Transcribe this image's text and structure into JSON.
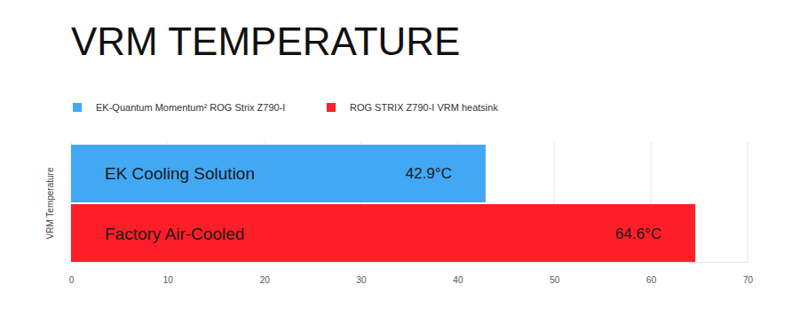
{
  "chart_data": {
    "type": "bar",
    "orientation": "horizontal",
    "title": "VRM TEMPERATURE",
    "ylabel": "VRM Temperature",
    "categories": [
      "EK Cooling Solution",
      "Factory Air-Cooled"
    ],
    "series": [
      {
        "name": "EK-Quantum Momentum² ROG Strix Z790-I",
        "color": "#42a8f4",
        "values": [
          42.9,
          null
        ],
        "value_labels": [
          "42.9°C",
          null
        ]
      },
      {
        "name": "ROG STRIX Z790-I VRM heatsink",
        "color": "#fe1e27",
        "values": [
          null,
          64.6
        ],
        "value_labels": [
          null,
          "64.6°C"
        ]
      }
    ],
    "xlim": [
      0,
      70
    ],
    "xticks": [
      0,
      10,
      20,
      30,
      40,
      50,
      60,
      70
    ],
    "grid": true,
    "data_labels": true,
    "legend": "top-left"
  }
}
